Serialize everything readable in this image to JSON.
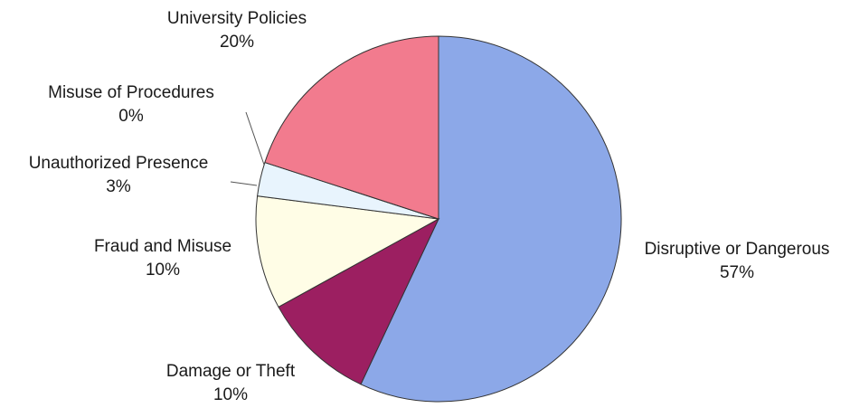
{
  "chart_data": {
    "type": "pie",
    "title": "",
    "slices": [
      {
        "label": "Disruptive or Dangerous",
        "value": 57,
        "value_label": "57%",
        "color": "#8CA8E8"
      },
      {
        "label": "Damage or Theft",
        "value": 10,
        "value_label": "10%",
        "color": "#9C1F61"
      },
      {
        "label": "Fraud and Misuse",
        "value": 10,
        "value_label": "10%",
        "color": "#FFFDE6"
      },
      {
        "label": "Unauthorized Presence",
        "value": 3,
        "value_label": "3%",
        "color": "#E8F4FD"
      },
      {
        "label": "Misuse of Procedures",
        "value": 0,
        "value_label": "0%",
        "color": "#B8B8D8"
      },
      {
        "label": "University Policies",
        "value": 20,
        "value_label": "20%",
        "color": "#F27B8E"
      }
    ],
    "start_angle": "top (12 o'clock)",
    "direction": "clockwise"
  }
}
